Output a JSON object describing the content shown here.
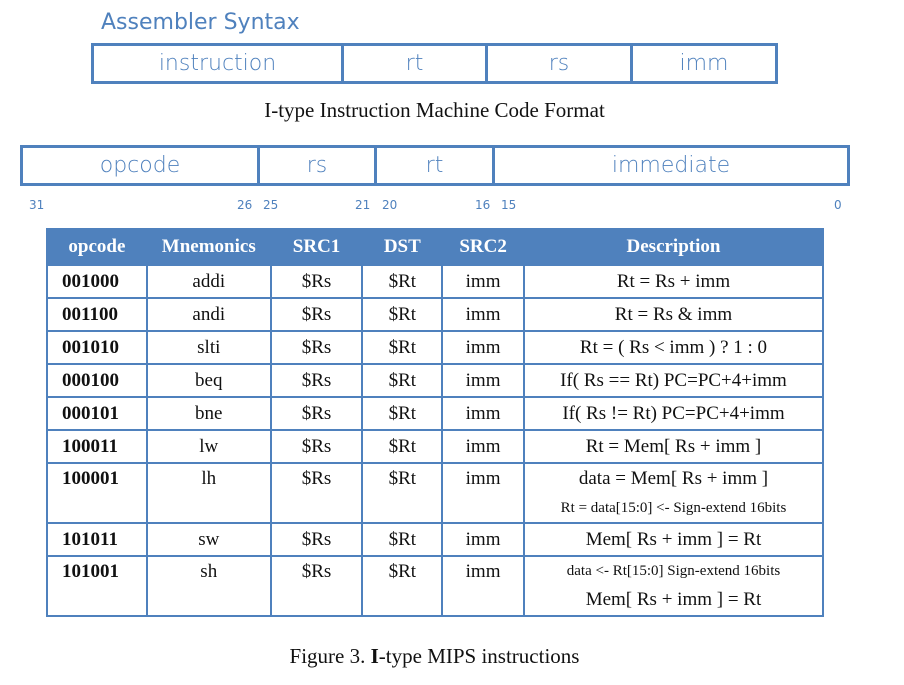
{
  "assembler": {
    "title": "Assembler Syntax",
    "fields": [
      "instruction",
      "rt",
      "rs",
      "imm"
    ]
  },
  "machine_code": {
    "title": "I-type Instruction Machine Code Format",
    "fields": [
      "opcode",
      "rs",
      "rt",
      "immediate"
    ],
    "bits": [
      "31",
      "26",
      "25",
      "21",
      "20",
      "16",
      "15",
      "0"
    ]
  },
  "table": {
    "headers": [
      "opcode",
      "Mnemonics",
      "SRC1",
      "DST",
      "SRC2",
      "Description"
    ],
    "rows": [
      {
        "opcode": "001000",
        "mnemonic": "addi",
        "src1": "$Rs",
        "dst": "$Rt",
        "src2": "imm",
        "desc": [
          "Rt = Rs + imm"
        ]
      },
      {
        "opcode": "001100",
        "mnemonic": "andi",
        "src1": "$Rs",
        "dst": "$Rt",
        "src2": "imm",
        "desc": [
          "Rt = Rs & imm"
        ]
      },
      {
        "opcode": "001010",
        "mnemonic": "slti",
        "src1": "$Rs",
        "dst": "$Rt",
        "src2": "imm",
        "desc": [
          "Rt = ( Rs < imm ) ? 1 : 0"
        ]
      },
      {
        "opcode": "000100",
        "mnemonic": "beq",
        "src1": "$Rs",
        "dst": "$Rt",
        "src2": "imm",
        "desc": [
          "If( Rs == Rt) PC=PC+4+imm"
        ]
      },
      {
        "opcode": "000101",
        "mnemonic": "bne",
        "src1": "$Rs",
        "dst": "$Rt",
        "src2": "imm",
        "desc": [
          "If( Rs != Rt) PC=PC+4+imm"
        ]
      },
      {
        "opcode": "100011",
        "mnemonic": "lw",
        "src1": "$Rs",
        "dst": "$Rt",
        "src2": "imm",
        "desc": [
          "Rt = Mem[ Rs + imm ]"
        ]
      },
      {
        "opcode": "100001",
        "mnemonic": "lh",
        "src1": "$Rs",
        "dst": "$Rt",
        "src2": "imm",
        "desc": [
          "data = Mem[ Rs + imm ]",
          "Rt = data[15:0] <- Sign-extend 16bits"
        ]
      },
      {
        "opcode": "101011",
        "mnemonic": "sw",
        "src1": "$Rs",
        "dst": "$Rt",
        "src2": "imm",
        "desc": [
          "Mem[ Rs + imm ] = Rt"
        ]
      },
      {
        "opcode": "101001",
        "mnemonic": "sh",
        "src1": "$Rs",
        "dst": "$Rt",
        "src2": "imm",
        "desc": [
          "data <- Rt[15:0] Sign-extend 16bits",
          "Mem[ Rs + imm ] = Rt"
        ]
      }
    ]
  },
  "caption": {
    "prefix": "Figure 3. ",
    "bold": "I",
    "suffix": "-type MIPS instructions"
  },
  "colors": {
    "accent": "#4f81bd"
  }
}
